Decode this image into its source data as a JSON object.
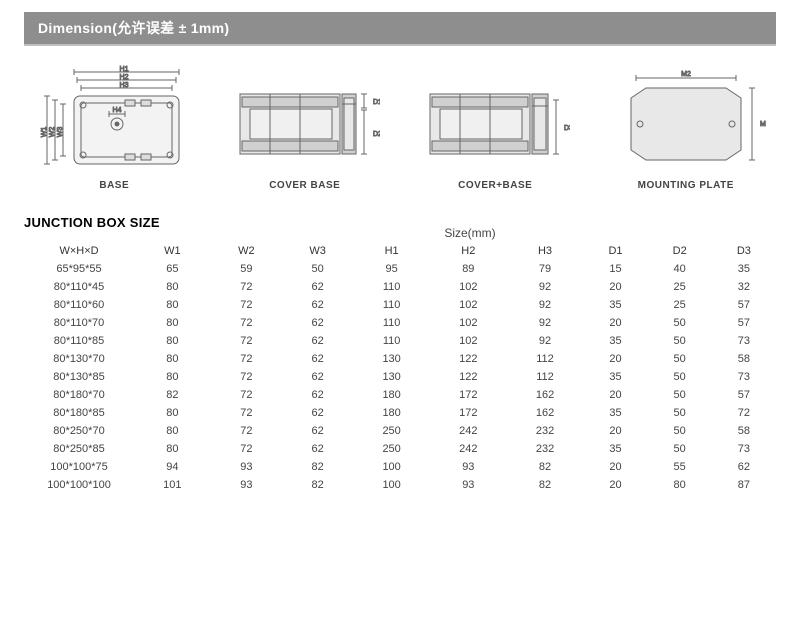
{
  "header": {
    "title": "Dimension(允许误差 ± 1mm)"
  },
  "diagrams": {
    "items": [
      {
        "label": "BASE"
      },
      {
        "label": "COVER BASE"
      },
      {
        "label": "COVER+BASE"
      },
      {
        "label": "MOUNTING PLATE"
      }
    ],
    "dim_labels": {
      "H1": "H1",
      "H2": "H2",
      "H3": "H3",
      "H4": "H4",
      "W1": "W1",
      "W2": "W2",
      "W3": "W3",
      "D1": "D1",
      "D2": "D2",
      "D3": "D3",
      "M1": "M1",
      "M2": "M2"
    }
  },
  "section_title": "JUNCTION BOX SIZE",
  "size_caption": "Size(mm)",
  "table": {
    "columns": [
      "W×H×D",
      "W1",
      "W2",
      "W3",
      "H1",
      "H2",
      "H3",
      "D1",
      "D2",
      "D3"
    ],
    "rows": [
      [
        "65*95*55",
        "65",
        "59",
        "50",
        "95",
        "89",
        "79",
        "15",
        "40",
        "35"
      ],
      [
        "80*110*45",
        "80",
        "72",
        "62",
        "110",
        "102",
        "92",
        "20",
        "25",
        "32"
      ],
      [
        "80*110*60",
        "80",
        "72",
        "62",
        "110",
        "102",
        "92",
        "35",
        "25",
        "57"
      ],
      [
        "80*110*70",
        "80",
        "72",
        "62",
        "110",
        "102",
        "92",
        "20",
        "50",
        "57"
      ],
      [
        "80*110*85",
        "80",
        "72",
        "62",
        "110",
        "102",
        "92",
        "35",
        "50",
        "73"
      ],
      [
        "80*130*70",
        "80",
        "72",
        "62",
        "130",
        "122",
        "112",
        "20",
        "50",
        "58"
      ],
      [
        "80*130*85",
        "80",
        "72",
        "62",
        "130",
        "122",
        "112",
        "35",
        "50",
        "73"
      ],
      [
        "80*180*70",
        "82",
        "72",
        "62",
        "180",
        "172",
        "162",
        "20",
        "50",
        "57"
      ],
      [
        "80*180*85",
        "80",
        "72",
        "62",
        "180",
        "172",
        "162",
        "35",
        "50",
        "72"
      ],
      [
        "80*250*70",
        "80",
        "72",
        "62",
        "250",
        "242",
        "232",
        "20",
        "50",
        "58"
      ],
      [
        "80*250*85",
        "80",
        "72",
        "62",
        "250",
        "242",
        "232",
        "35",
        "50",
        "73"
      ],
      [
        "100*100*75",
        "94",
        "93",
        "82",
        "100",
        "93",
        "82",
        "20",
        "55",
        "62"
      ],
      [
        "100*100*100",
        "101",
        "93",
        "82",
        "100",
        "93",
        "82",
        "20",
        "80",
        "87"
      ]
    ]
  },
  "colors": {
    "header_bg": "#8e8e8e",
    "header_text": "#ffffff",
    "diagram_stroke": "#666666",
    "diagram_fill": "#e8e8e8",
    "text": "#333333"
  }
}
